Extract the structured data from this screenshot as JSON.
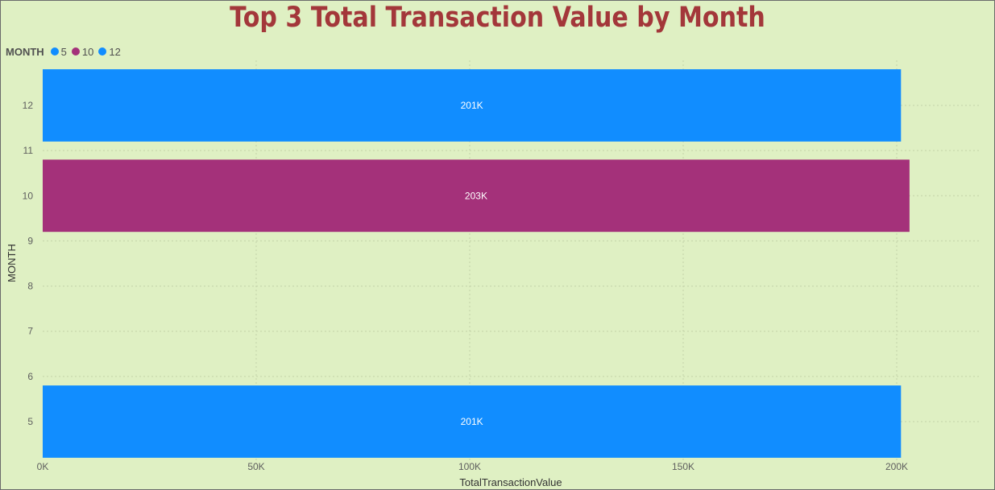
{
  "chart_data": {
    "type": "bar",
    "orientation": "horizontal",
    "title": "Top 3 Total Transaction Value by Month",
    "xlabel": "TotalTransactionValue",
    "ylabel": "MONTH",
    "legend": {
      "title": "MONTH",
      "placement": "top-left",
      "items": [
        {
          "label": "5",
          "color": "#118dff"
        },
        {
          "label": "10",
          "color": "#a4317a"
        },
        {
          "label": "12",
          "color": "#118dff"
        }
      ]
    },
    "categories": [
      5,
      10,
      12
    ],
    "values": [
      201000,
      203000,
      201000
    ],
    "data_labels": [
      "201K",
      "203K",
      "201K"
    ],
    "colors": [
      "#118dff",
      "#a4317a",
      "#118dff"
    ],
    "xlim": [
      0,
      203000
    ],
    "x_ticks": [
      0,
      50000,
      100000,
      150000,
      200000
    ],
    "x_tick_labels": [
      "0K",
      "50K",
      "100K",
      "150K",
      "200K"
    ],
    "ylim": [
      4.2,
      12.8
    ],
    "y_ticks": [
      5,
      6,
      7,
      8,
      9,
      10,
      11,
      12
    ],
    "y_tick_labels": [
      "5",
      "6",
      "7",
      "8",
      "9",
      "10",
      "11",
      "12"
    ],
    "grid": true
  }
}
